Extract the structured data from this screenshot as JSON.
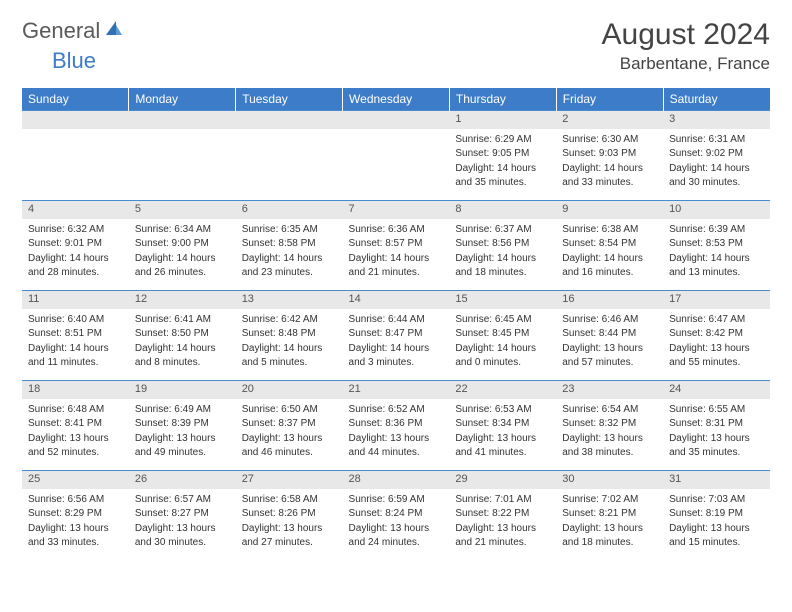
{
  "brand": {
    "part1": "General",
    "part2": "Blue"
  },
  "title": "August 2024",
  "location": "Barbentane, France",
  "colors": {
    "header_bg": "#3d7cc9",
    "header_text": "#ffffff",
    "daynum_bg": "#e8e8e8",
    "rule": "#4a8bd0",
    "logo_gray": "#5a5a5a",
    "logo_blue": "#3d7cc9"
  },
  "weekdays": [
    "Sunday",
    "Monday",
    "Tuesday",
    "Wednesday",
    "Thursday",
    "Friday",
    "Saturday"
  ],
  "weeks": [
    [
      null,
      null,
      null,
      null,
      {
        "n": "1",
        "sr": "Sunrise: 6:29 AM",
        "ss": "Sunset: 9:05 PM",
        "d1": "Daylight: 14 hours",
        "d2": "and 35 minutes."
      },
      {
        "n": "2",
        "sr": "Sunrise: 6:30 AM",
        "ss": "Sunset: 9:03 PM",
        "d1": "Daylight: 14 hours",
        "d2": "and 33 minutes."
      },
      {
        "n": "3",
        "sr": "Sunrise: 6:31 AM",
        "ss": "Sunset: 9:02 PM",
        "d1": "Daylight: 14 hours",
        "d2": "and 30 minutes."
      }
    ],
    [
      {
        "n": "4",
        "sr": "Sunrise: 6:32 AM",
        "ss": "Sunset: 9:01 PM",
        "d1": "Daylight: 14 hours",
        "d2": "and 28 minutes."
      },
      {
        "n": "5",
        "sr": "Sunrise: 6:34 AM",
        "ss": "Sunset: 9:00 PM",
        "d1": "Daylight: 14 hours",
        "d2": "and 26 minutes."
      },
      {
        "n": "6",
        "sr": "Sunrise: 6:35 AM",
        "ss": "Sunset: 8:58 PM",
        "d1": "Daylight: 14 hours",
        "d2": "and 23 minutes."
      },
      {
        "n": "7",
        "sr": "Sunrise: 6:36 AM",
        "ss": "Sunset: 8:57 PM",
        "d1": "Daylight: 14 hours",
        "d2": "and 21 minutes."
      },
      {
        "n": "8",
        "sr": "Sunrise: 6:37 AM",
        "ss": "Sunset: 8:56 PM",
        "d1": "Daylight: 14 hours",
        "d2": "and 18 minutes."
      },
      {
        "n": "9",
        "sr": "Sunrise: 6:38 AM",
        "ss": "Sunset: 8:54 PM",
        "d1": "Daylight: 14 hours",
        "d2": "and 16 minutes."
      },
      {
        "n": "10",
        "sr": "Sunrise: 6:39 AM",
        "ss": "Sunset: 8:53 PM",
        "d1": "Daylight: 14 hours",
        "d2": "and 13 minutes."
      }
    ],
    [
      {
        "n": "11",
        "sr": "Sunrise: 6:40 AM",
        "ss": "Sunset: 8:51 PM",
        "d1": "Daylight: 14 hours",
        "d2": "and 11 minutes."
      },
      {
        "n": "12",
        "sr": "Sunrise: 6:41 AM",
        "ss": "Sunset: 8:50 PM",
        "d1": "Daylight: 14 hours",
        "d2": "and 8 minutes."
      },
      {
        "n": "13",
        "sr": "Sunrise: 6:42 AM",
        "ss": "Sunset: 8:48 PM",
        "d1": "Daylight: 14 hours",
        "d2": "and 5 minutes."
      },
      {
        "n": "14",
        "sr": "Sunrise: 6:44 AM",
        "ss": "Sunset: 8:47 PM",
        "d1": "Daylight: 14 hours",
        "d2": "and 3 minutes."
      },
      {
        "n": "15",
        "sr": "Sunrise: 6:45 AM",
        "ss": "Sunset: 8:45 PM",
        "d1": "Daylight: 14 hours",
        "d2": "and 0 minutes."
      },
      {
        "n": "16",
        "sr": "Sunrise: 6:46 AM",
        "ss": "Sunset: 8:44 PM",
        "d1": "Daylight: 13 hours",
        "d2": "and 57 minutes."
      },
      {
        "n": "17",
        "sr": "Sunrise: 6:47 AM",
        "ss": "Sunset: 8:42 PM",
        "d1": "Daylight: 13 hours",
        "d2": "and 55 minutes."
      }
    ],
    [
      {
        "n": "18",
        "sr": "Sunrise: 6:48 AM",
        "ss": "Sunset: 8:41 PM",
        "d1": "Daylight: 13 hours",
        "d2": "and 52 minutes."
      },
      {
        "n": "19",
        "sr": "Sunrise: 6:49 AM",
        "ss": "Sunset: 8:39 PM",
        "d1": "Daylight: 13 hours",
        "d2": "and 49 minutes."
      },
      {
        "n": "20",
        "sr": "Sunrise: 6:50 AM",
        "ss": "Sunset: 8:37 PM",
        "d1": "Daylight: 13 hours",
        "d2": "and 46 minutes."
      },
      {
        "n": "21",
        "sr": "Sunrise: 6:52 AM",
        "ss": "Sunset: 8:36 PM",
        "d1": "Daylight: 13 hours",
        "d2": "and 44 minutes."
      },
      {
        "n": "22",
        "sr": "Sunrise: 6:53 AM",
        "ss": "Sunset: 8:34 PM",
        "d1": "Daylight: 13 hours",
        "d2": "and 41 minutes."
      },
      {
        "n": "23",
        "sr": "Sunrise: 6:54 AM",
        "ss": "Sunset: 8:32 PM",
        "d1": "Daylight: 13 hours",
        "d2": "and 38 minutes."
      },
      {
        "n": "24",
        "sr": "Sunrise: 6:55 AM",
        "ss": "Sunset: 8:31 PM",
        "d1": "Daylight: 13 hours",
        "d2": "and 35 minutes."
      }
    ],
    [
      {
        "n": "25",
        "sr": "Sunrise: 6:56 AM",
        "ss": "Sunset: 8:29 PM",
        "d1": "Daylight: 13 hours",
        "d2": "and 33 minutes."
      },
      {
        "n": "26",
        "sr": "Sunrise: 6:57 AM",
        "ss": "Sunset: 8:27 PM",
        "d1": "Daylight: 13 hours",
        "d2": "and 30 minutes."
      },
      {
        "n": "27",
        "sr": "Sunrise: 6:58 AM",
        "ss": "Sunset: 8:26 PM",
        "d1": "Daylight: 13 hours",
        "d2": "and 27 minutes."
      },
      {
        "n": "28",
        "sr": "Sunrise: 6:59 AM",
        "ss": "Sunset: 8:24 PM",
        "d1": "Daylight: 13 hours",
        "d2": "and 24 minutes."
      },
      {
        "n": "29",
        "sr": "Sunrise: 7:01 AM",
        "ss": "Sunset: 8:22 PM",
        "d1": "Daylight: 13 hours",
        "d2": "and 21 minutes."
      },
      {
        "n": "30",
        "sr": "Sunrise: 7:02 AM",
        "ss": "Sunset: 8:21 PM",
        "d1": "Daylight: 13 hours",
        "d2": "and 18 minutes."
      },
      {
        "n": "31",
        "sr": "Sunrise: 7:03 AM",
        "ss": "Sunset: 8:19 PM",
        "d1": "Daylight: 13 hours",
        "d2": "and 15 minutes."
      }
    ]
  ]
}
